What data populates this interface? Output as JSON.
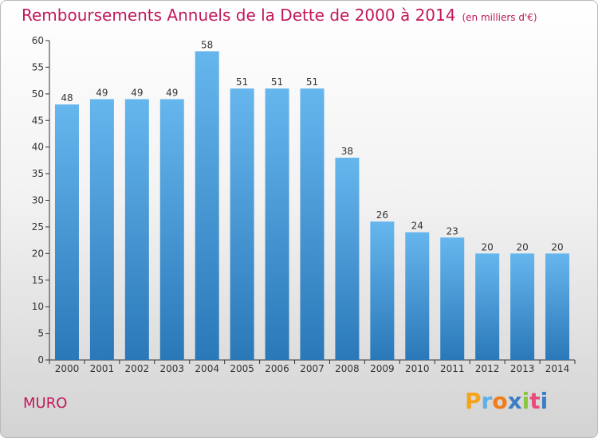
{
  "title": "Remboursements Annuels de la Dette de 2000 à 2014",
  "unit_note": "(en milliers d'€)",
  "commune": "MURO",
  "logo": "Proxiti",
  "colors": {
    "title": "#c2185b",
    "bar_top": "#66b6ee",
    "bar_bottom": "#2a78b8",
    "axis": "#333333"
  },
  "chart_data": {
    "type": "bar",
    "categories": [
      "2000",
      "2001",
      "2002",
      "2003",
      "2004",
      "2005",
      "2006",
      "2007",
      "2008",
      "2009",
      "2010",
      "2011",
      "2012",
      "2013",
      "2014"
    ],
    "values": [
      48,
      49,
      49,
      49,
      58,
      51,
      51,
      51,
      38,
      26,
      24,
      23,
      20,
      20,
      20
    ],
    "ylim": [
      0,
      60
    ],
    "yticks": [
      0,
      5,
      10,
      15,
      20,
      25,
      30,
      35,
      40,
      45,
      50,
      55,
      60
    ],
    "grid": false,
    "data_labels": true
  }
}
